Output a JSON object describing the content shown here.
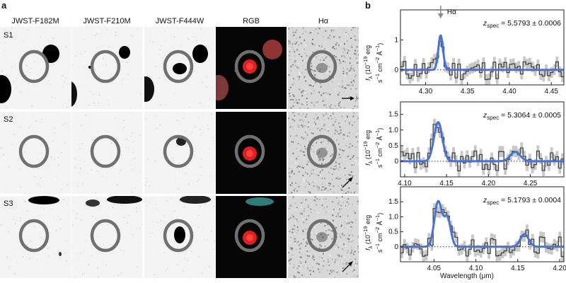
{
  "panels": {
    "a": "a",
    "b": "b"
  },
  "columns": [
    "JWST-F182M",
    "JWST-F210M",
    "JWST-F444W",
    "RGB",
    "Hα"
  ],
  "rows": [
    "S1",
    "S2",
    "S3"
  ],
  "line_label": "Hα",
  "y_axis_label": [
    "f",
    "λ",
    "(10",
    "−19",
    " erg",
    "s",
    "−1",
    " cm",
    "−2",
    " Å",
    "−1",
    ")"
  ],
  "x_axis_label": "Wavelength (μm)",
  "colors": {
    "model": "#4a72d4",
    "data": "#444444",
    "error": "#c8c8c8",
    "circle": "#707070",
    "rgb_core": "#e02020"
  },
  "chart_data": [
    {
      "type": "line",
      "title": "",
      "z_label": "z",
      "z_sub": "spec",
      "z_value": "= 5.5793 ± 0.0006",
      "xlim": [
        4.27,
        4.465
      ],
      "ylim": [
        -0.5,
        2.0
      ],
      "xticks": [
        "4.30",
        "4.35",
        "4.40",
        "4.45"
      ],
      "xtick_values": [
        4.3,
        4.35,
        4.4,
        4.45
      ],
      "yticks": [
        "0",
        "1"
      ],
      "ytick_values": [
        0,
        1
      ],
      "line_center": 4.318,
      "series": [
        {
          "peaks": [
            [
              4.318,
              1.15,
              0.0028
            ]
          ]
        }
      ]
    },
    {
      "type": "line",
      "title": "",
      "z_label": "z",
      "z_sub": "spec",
      "z_value": "= 5.3064 ± 0.0005",
      "xlim": [
        4.095,
        4.29
      ],
      "ylim": [
        -0.5,
        1.9
      ],
      "xticks": [
        "4.10",
        "4.15",
        "4.20",
        "4.25"
      ],
      "xtick_values": [
        4.1,
        4.15,
        4.2,
        4.25
      ],
      "yticks": [
        "0",
        "0.5",
        "1.0",
        "1.5"
      ],
      "ytick_values": [
        0,
        0.5,
        1.0,
        1.5
      ],
      "series": [
        {
          "peaks": [
            [
              4.14,
              1.25,
              0.005
            ],
            [
              4.232,
              0.3,
              0.006
            ]
          ]
        }
      ]
    },
    {
      "type": "line",
      "title": "",
      "z_label": "z",
      "z_sub": "spec",
      "z_value": "= 5.1793 ± 0.0004",
      "xlim": [
        4.01,
        4.205
      ],
      "ylim": [
        -0.5,
        2.0
      ],
      "xticks": [
        "4.05",
        "4.10",
        "4.15",
        "4.20"
      ],
      "xtick_values": [
        4.05,
        4.1,
        4.15,
        4.2
      ],
      "yticks": [
        "0",
        "0.5",
        "1.0",
        "1.5"
      ],
      "ytick_values": [
        0,
        0.5,
        1.0,
        1.5
      ],
      "series": [
        {
          "peaks": [
            [
              4.055,
              1.5,
              0.0045
            ],
            [
              4.066,
              0.95,
              0.004
            ],
            [
              4.158,
              0.42,
              0.005
            ]
          ]
        }
      ]
    }
  ]
}
